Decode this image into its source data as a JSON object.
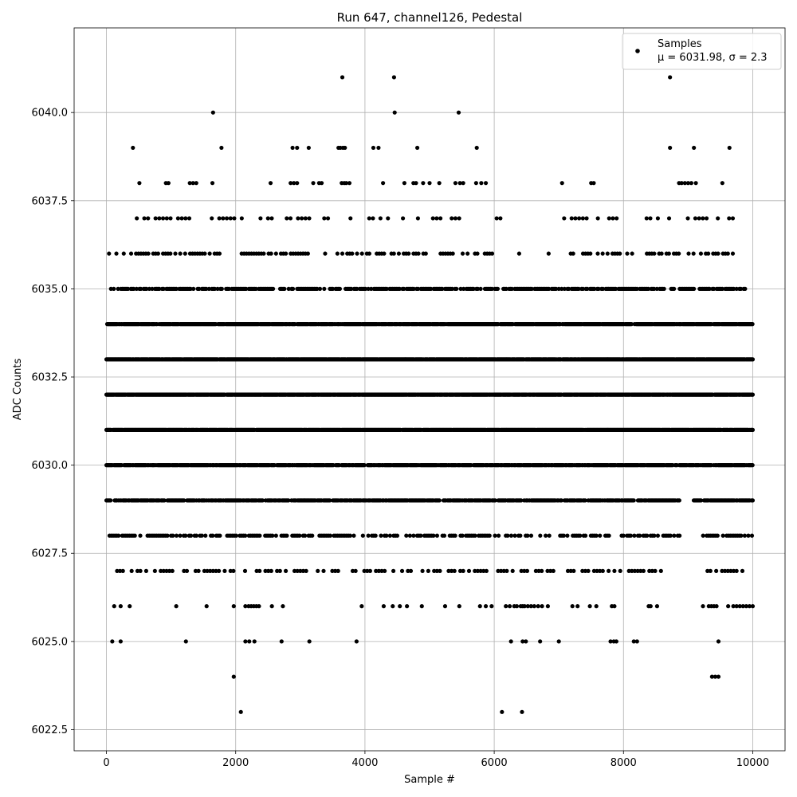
{
  "chart_data": {
    "type": "scatter",
    "title": "Run 647, channel126, Pedestal",
    "xlabel": "Sample #",
    "ylabel": "ADC Counts",
    "xlim": [
      -500,
      10500
    ],
    "ylim": [
      6021.9,
      6042.4
    ],
    "xticks": [
      0,
      2000,
      4000,
      6000,
      8000,
      10000
    ],
    "xtick_labels": [
      "0",
      "2000",
      "4000",
      "6000",
      "8000",
      "10000"
    ],
    "yticks": [
      6022.5,
      6025.0,
      6027.5,
      6030.0,
      6032.5,
      6035.0,
      6037.5,
      6040.0
    ],
    "ytick_labels": [
      "6022.5",
      "6025.0",
      "6027.5",
      "6030.0",
      "6032.5",
      "6035.0",
      "6037.5",
      "6040.0"
    ],
    "grid": true,
    "legend": {
      "placement": "top-right",
      "series_label": "Samples",
      "stats_label": "μ = 6031.98, σ = 2.3"
    },
    "marker_color": "#000000",
    "series": [
      {
        "name": "Samples",
        "bands": [
          {
            "y": 6041,
            "x": [
              3650,
              4450,
              8720
            ]
          },
          {
            "y": 6040,
            "x": [
              1650,
              4460,
              5450
            ]
          },
          {
            "y": 6039,
            "x": [
              410,
              1780,
              2880,
              2950,
              3130,
              3590,
              3620,
              3660,
              3690,
              4130,
              4210,
              4810,
              5730,
              8720,
              9090,
              9640
            ]
          },
          {
            "y": 6038,
            "x": [
              510,
              920,
              960,
              1290,
              1340,
              1390,
              1640,
              2540,
              2850,
              2900,
              2950,
              3200,
              3290,
              3330,
              3640,
              3680,
              3710,
              3760,
              4280,
              4610,
              4750,
              4790,
              4900,
              5000,
              5150,
              5400,
              5470,
              5520,
              5720,
              5800,
              5870,
              7050,
              7500,
              7540,
              8860,
              8900,
              8950,
              9000,
              9050,
              9120,
              9530
            ]
          },
          {
            "y": 6037,
            "x": {
              "from": 470,
              "to": 9700,
              "step": 58,
              "seed": 3,
              "gaps": [
                [
                  6140,
                  7080
                ],
                [
                  7950,
                  8280
                ]
              ],
              "density": 0.55
            }
          },
          {
            "y": 6036,
            "x": {
              "from": 40,
              "to": 9720,
              "step": 38,
              "seed": 5,
              "gaps": [
                [
                  6000,
                  6380
                ],
                [
                  6420,
                  6820
                ],
                [
                  6870,
                  7180
                ]
              ],
              "density": 0.62
            }
          },
          {
            "y": 6035,
            "x": {
              "from": 70,
              "to": 9900,
              "step": 22,
              "seed": 7,
              "gaps": [],
              "density": 0.78
            }
          },
          {
            "y": 6034,
            "x": {
              "from": 0,
              "to": 10000,
              "step": 12,
              "seed": 11,
              "gaps": [],
              "density": 0.9
            }
          },
          {
            "y": 6033,
            "x": {
              "from": 0,
              "to": 10000,
              "step": 10,
              "seed": 13,
              "gaps": [],
              "density": 0.95
            }
          },
          {
            "y": 6032,
            "x": {
              "from": 0,
              "to": 10000,
              "step": 10,
              "seed": 17,
              "gaps": [],
              "density": 0.95
            }
          },
          {
            "y": 6031,
            "x": {
              "from": 0,
              "to": 10000,
              "step": 10,
              "seed": 19,
              "gaps": [],
              "density": 0.95
            }
          },
          {
            "y": 6030,
            "x": {
              "from": 0,
              "to": 10000,
              "step": 13,
              "seed": 23,
              "gaps": [],
              "density": 0.88
            }
          },
          {
            "y": 6029,
            "x": {
              "from": 0,
              "to": 10000,
              "step": 16,
              "seed": 29,
              "gaps": [
                [
                  8880,
                  9080
                ]
              ],
              "density": 0.82
            }
          },
          {
            "y": 6028,
            "x": {
              "from": 20,
              "to": 10000,
              "step": 28,
              "seed": 31,
              "gaps": [
                [
                  8870,
                  9220
                ]
              ],
              "density": 0.68
            }
          },
          {
            "y": 6027,
            "x": {
              "from": 120,
              "to": 9850,
              "step": 45,
              "seed": 37,
              "gaps": [
                [
                  8680,
                  9220
                ]
              ],
              "density": 0.6
            }
          },
          {
            "y": 6026,
            "x": [
              120,
              220,
              360,
              1080,
              1550,
              1970,
              2150,
              2200,
              2240,
              2280,
              2320,
              2360,
              2560,
              2730,
              3950,
              4290,
              4430,
              4540,
              4650,
              4880,
              5240,
              5460,
              5780,
              5870,
              5960,
              6180,
              6240,
              6310,
              6350,
              6410,
              6440,
              6470,
              6520,
              6570,
              6620,
              6680,
              6740,
              6830,
              7210,
              7290,
              7480,
              7580,
              7820,
              7860,
              8390,
              8420,
              8520,
              9230,
              9320,
              9360,
              9400,
              9440,
              9620,
              9700,
              9750,
              9800,
              9850,
              9900,
              9950,
              10000
            ]
          },
          {
            "y": 6025,
            "x": [
              90,
              220,
              1230,
              2150,
              2210,
              2290,
              2710,
              3140,
              3870,
              6260,
              6440,
              6490,
              6710,
              7000,
              7800,
              7850,
              7890,
              8160,
              8210,
              9470
            ]
          },
          {
            "y": 6024,
            "x": [
              1970,
              9370,
              9420,
              9470
            ]
          },
          {
            "y": 6023,
            "x": [
              2080,
              6120,
              6430
            ]
          }
        ]
      }
    ]
  }
}
